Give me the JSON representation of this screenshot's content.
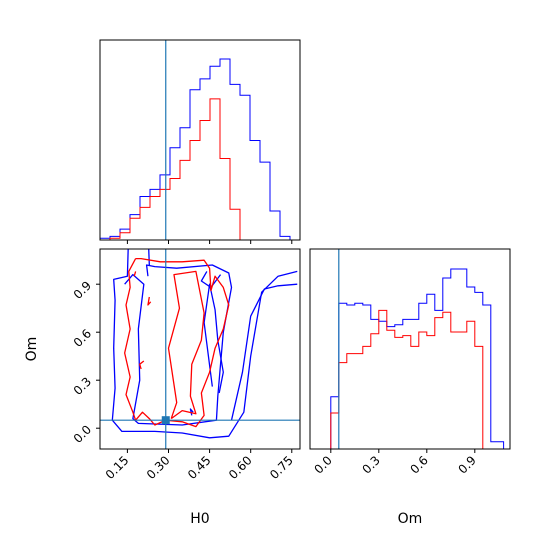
{
  "chart_data": [
    {
      "panel": "H0 marginal",
      "type": "histogram",
      "xlim": [
        0.05,
        0.78
      ],
      "series": [
        {
          "color": "#0000ff",
          "x_edges": [
            0.05,
            0.0865,
            0.123,
            0.1595,
            0.196,
            0.2325,
            0.269,
            0.3055,
            0.342,
            0.3785,
            0.415,
            0.4515,
            0.488,
            0.5245,
            0.561,
            0.5975,
            0.634,
            0.6705,
            0.707,
            0.7435,
            0.78
          ],
          "values": [
            0.01,
            0.02,
            0.06,
            0.14,
            0.24,
            0.28,
            0.36,
            0.51,
            0.62,
            0.83,
            0.89,
            0.96,
            1.0,
            0.86,
            0.8,
            0.55,
            0.43,
            0.16,
            0.02,
            0.0
          ]
        },
        {
          "color": "#ff0000",
          "x_edges": [
            0.05,
            0.0865,
            0.123,
            0.1595,
            0.196,
            0.2325,
            0.269,
            0.3055,
            0.342,
            0.3785,
            0.415,
            0.4515,
            0.488,
            0.5245,
            0.561,
            0.5975,
            0.634,
            0.6705,
            0.707,
            0.7435,
            0.78
          ],
          "values": [
            0.0,
            0.01,
            0.04,
            0.12,
            0.18,
            0.24,
            0.28,
            0.34,
            0.44,
            0.55,
            0.66,
            0.78,
            0.45,
            0.17,
            0.0,
            0.0,
            0.0,
            0.0,
            0.0,
            0.0
          ]
        }
      ],
      "truth_line_x": 0.29
    },
    {
      "panel": "H0 vs Om contours",
      "type": "contour",
      "xlabel": "H0",
      "ylabel": "Om",
      "xlim": [
        0.05,
        0.78
      ],
      "ylim": [
        -0.13,
        1.12
      ],
      "xticks": [
        "0.15",
        "0.30",
        "0.45",
        "0.60",
        "0.75"
      ],
      "yticks": [
        "0.0",
        "0.3",
        "0.6",
        "0.9"
      ],
      "truth_point": [
        0.29,
        0.05
      ],
      "contours": [
        {
          "color": "#0000ff",
          "paths": [
            [
              [
                0.155,
                1.25
              ],
              [
                0.15,
                0.95
              ],
              [
                0.1,
                0.93
              ],
              [
                0.105,
                0.8
              ],
              [
                0.1,
                0.5
              ],
              [
                0.105,
                0.25
              ],
              [
                0.095,
                0.05
              ],
              [
                0.13,
                -0.02
              ],
              [
                0.25,
                -0.02
              ],
              [
                0.35,
                -0.03
              ],
              [
                0.45,
                -0.06
              ],
              [
                0.52,
                -0.05
              ],
              [
                0.575,
                0.1
              ],
              [
                0.6,
                0.45
              ],
              [
                0.64,
                0.85
              ],
              [
                0.7,
                0.95
              ],
              [
                0.77,
                0.98
              ]
            ],
            [
              [
                0.14,
                0.9
              ],
              [
                0.17,
                0.96
              ],
              [
                0.21,
                0.9
              ],
              [
                0.19,
                0.62
              ],
              [
                0.195,
                0.3
              ],
              [
                0.17,
                0.06
              ],
              [
                0.19,
                0.03
              ],
              [
                0.35,
                0.02
              ],
              [
                0.475,
                0.05
              ],
              [
                0.48,
                0.2
              ],
              [
                0.5,
                0.6
              ],
              [
                0.53,
                0.88
              ],
              [
                0.52,
                0.97
              ],
              [
                0.46,
                1.02
              ],
              [
                0.33,
                1.0
              ],
              [
                0.25,
                1.01
              ],
              [
                0.22,
                1.02
              ],
              [
                0.225,
                0.95
              ]
            ],
            [
              [
                0.225,
                1.25
              ],
              [
                0.23,
                1.02
              ]
            ],
            [
              [
                0.39,
                0.1
              ],
              [
                0.38,
                0.12
              ],
              [
                0.385,
                0.08
              ]
            ],
            [
              [
                0.46,
                0.26
              ],
              [
                0.43,
                0.66
              ],
              [
                0.45,
                0.9
              ],
              [
                0.47,
                0.74
              ],
              [
                0.48,
                0.55
              ],
              [
                0.5,
                0.35
              ],
              [
                0.485,
                0.22
              ]
            ],
            [
              [
                0.53,
                0.05
              ],
              [
                0.57,
                0.35
              ],
              [
                0.6,
                0.7
              ],
              [
                0.65,
                0.87
              ],
              [
                0.7,
                0.89
              ],
              [
                0.77,
                0.9
              ]
            ],
            [
              [
                0.44,
                0.98
              ],
              [
                0.42,
                0.92
              ],
              [
                0.455,
                0.88
              ],
              [
                0.49,
                0.96
              ]
            ]
          ]
        },
        {
          "color": "#ff0000",
          "paths": [
            [
              [
                0.18,
                1.06
              ],
              [
                0.155,
                0.98
              ],
              [
                0.16,
                0.88
              ],
              [
                0.145,
                0.77
              ],
              [
                0.16,
                0.62
              ],
              [
                0.14,
                0.47
              ],
              [
                0.16,
                0.32
              ],
              [
                0.145,
                0.21
              ],
              [
                0.17,
                0.1
              ],
              [
                0.18,
                0.05
              ],
              [
                0.205,
                0.1
              ],
              [
                0.23,
                0.06
              ],
              [
                0.25,
                0.02
              ],
              [
                0.29,
                0.05
              ],
              [
                0.35,
                0.04
              ],
              [
                0.4,
                0.01
              ],
              [
                0.43,
                0.08
              ],
              [
                0.42,
                0.22
              ],
              [
                0.45,
                0.35
              ],
              [
                0.47,
                0.5
              ],
              [
                0.5,
                0.62
              ],
              [
                0.52,
                0.77
              ],
              [
                0.5,
                0.88
              ],
              [
                0.47,
                0.95
              ],
              [
                0.455,
                0.86
              ],
              [
                0.45,
                1.0
              ],
              [
                0.43,
                1.05
              ],
              [
                0.35,
                1.04
              ],
              [
                0.27,
                1.04
              ],
              [
                0.2,
                1.06
              ],
              [
                0.18,
                1.06
              ]
            ],
            [
              [
                0.31,
                0.06
              ],
              [
                0.33,
                0.16
              ],
              [
                0.3,
                0.5
              ],
              [
                0.34,
                0.75
              ],
              [
                0.32,
                0.96
              ],
              [
                0.4,
                0.98
              ],
              [
                0.43,
                0.72
              ],
              [
                0.42,
                0.55
              ],
              [
                0.385,
                0.4
              ],
              [
                0.38,
                0.2
              ],
              [
                0.4,
                0.09
              ],
              [
                0.35,
                0.11
              ],
              [
                0.31,
                0.06
              ]
            ],
            [
              [
                0.23,
                0.82
              ],
              [
                0.225,
                0.77
              ],
              [
                0.235,
                0.79
              ]
            ],
            [
              [
                0.18,
                0.98
              ],
              [
                0.175,
                0.95
              ]
            ],
            [
              [
                0.21,
                0.42
              ],
              [
                0.195,
                0.4
              ],
              [
                0.2,
                0.37
              ]
            ]
          ]
        }
      ]
    },
    {
      "panel": "Om marginal",
      "type": "histogram",
      "xlabel": "Om",
      "xlim": [
        -0.13,
        1.12
      ],
      "xticks": [
        "0.0",
        "0.3",
        "0.6",
        "0.9"
      ],
      "series": [
        {
          "color": "#0000ff",
          "x_edges": [
            -0.05,
            0.0,
            0.05,
            0.1,
            0.15,
            0.2,
            0.25,
            0.3,
            0.35,
            0.4,
            0.45,
            0.5,
            0.55,
            0.6,
            0.65,
            0.7,
            0.75,
            0.8,
            0.85,
            0.9,
            0.95,
            1.0,
            1.05,
            1.08
          ],
          "values": [
            0.0,
            0.29,
            0.81,
            0.8,
            0.81,
            0.8,
            0.72,
            0.71,
            0.68,
            0.69,
            0.72,
            0.72,
            0.81,
            0.86,
            0.77,
            0.95,
            1.0,
            1.0,
            0.9,
            0.87,
            0.8,
            0.04,
            0.04
          ]
        },
        {
          "color": "#ff0000",
          "x_edges": [
            -0.05,
            0.0,
            0.05,
            0.1,
            0.15,
            0.2,
            0.25,
            0.3,
            0.35,
            0.4,
            0.45,
            0.5,
            0.55,
            0.6,
            0.65,
            0.7,
            0.75,
            0.8,
            0.85,
            0.9,
            0.95,
            1.0
          ],
          "values": [
            0.0,
            0.2,
            0.48,
            0.53,
            0.53,
            0.57,
            0.64,
            0.77,
            0.66,
            0.62,
            0.63,
            0.57,
            0.65,
            0.63,
            0.73,
            0.76,
            0.65,
            0.65,
            0.71,
            0.57,
            0.0
          ]
        }
      ],
      "truth_line_x": 0.05
    }
  ],
  "colors": {
    "truth": "#1f77b4",
    "blue": "#0000ff",
    "red": "#ff0000"
  }
}
